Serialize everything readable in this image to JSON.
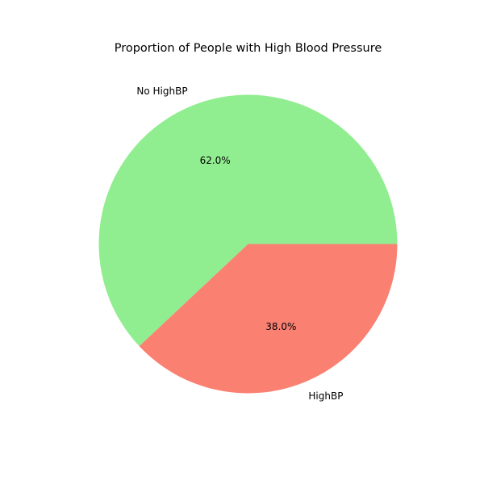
{
  "chart_data": {
    "type": "pie",
    "title": "Proportion of People with High Blood Pressure",
    "slices": [
      {
        "label": "No HighBP",
        "value": 62.0,
        "pct_label": "62.0%",
        "color": "#90ee90"
      },
      {
        "label": "HighBP",
        "value": 38.0,
        "pct_label": "38.0%",
        "color": "#fa8072"
      }
    ],
    "start_angle_deg": 0,
    "direction": "counterclockwise",
    "legend": "none"
  }
}
